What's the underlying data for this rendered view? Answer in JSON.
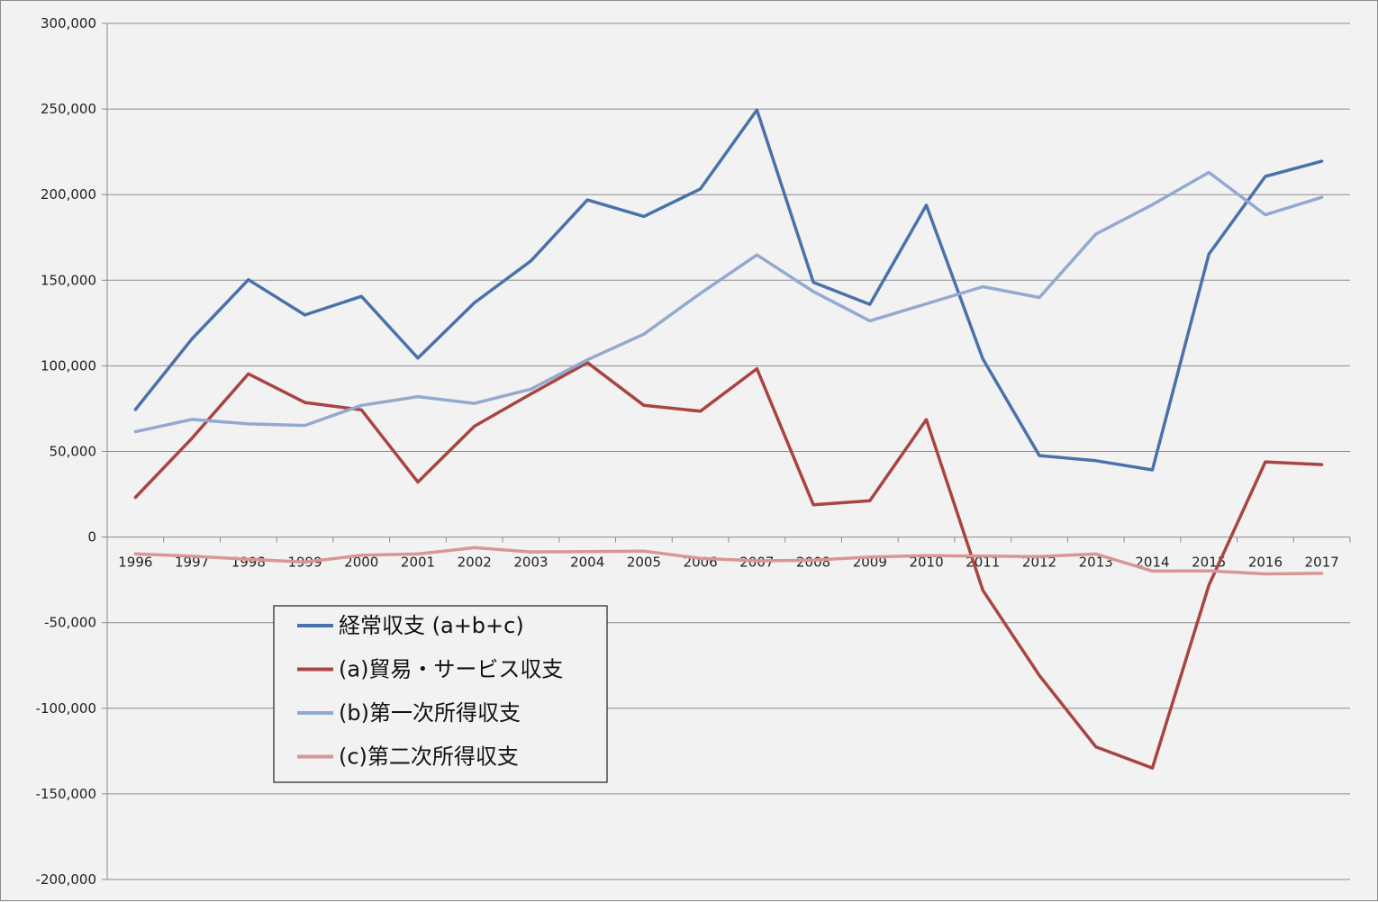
{
  "chart_data": {
    "type": "line",
    "title": "",
    "xlabel": "",
    "ylabel": "",
    "categories": [
      "1996",
      "1997",
      "1998",
      "1999",
      "2000",
      "2001",
      "2002",
      "2003",
      "2004",
      "2005",
      "2006",
      "2007",
      "2008",
      "2009",
      "2010",
      "2011",
      "2012",
      "2013",
      "2014",
      "2015",
      "2016",
      "2017"
    ],
    "ylim": [
      -200000,
      300000
    ],
    "y_ticks": [
      300000,
      250000,
      200000,
      150000,
      100000,
      50000,
      0,
      -50000,
      -100000,
      -150000,
      -200000
    ],
    "y_tick_labels": [
      "300,000",
      "250,000",
      "200,000",
      "150,000",
      "100,000",
      "50,000",
      "0",
      "-50,000",
      "-100,000",
      "-150,000",
      "-200,000"
    ],
    "grid": true,
    "legend_position": "lower-left",
    "series": [
      {
        "name": "経常収支 (a+b+c)",
        "color": "#4a72aa",
        "values": [
          74500,
          115700,
          150300,
          129700,
          140600,
          104500,
          136800,
          161300,
          196900,
          187300,
          203300,
          249500,
          148800,
          135900,
          193800,
          104000,
          47600,
          44600,
          39200,
          165200,
          210600,
          219500
        ]
      },
      {
        "name": "(a)貿易・サービス収支",
        "color": "#a84442",
        "values": [
          23200,
          57700,
          95300,
          78600,
          74300,
          32100,
          64700,
          83600,
          101900,
          76900,
          73500,
          98300,
          18900,
          21200,
          68600,
          -31100,
          -80800,
          -122500,
          -134900,
          -28200,
          43900,
          42300
        ]
      },
      {
        "name": "(b)第一次所得収支",
        "color": "#93a9d1",
        "values": [
          61500,
          68700,
          66100,
          65200,
          76900,
          82000,
          78100,
          86400,
          103500,
          118500,
          142300,
          164800,
          143400,
          126300,
          136200,
          146200,
          139900,
          176900,
          194100,
          213000,
          188200,
          198400
        ]
      },
      {
        "name": "(c)第二次所得収支",
        "color": "#d99694",
        "values": [
          -9800,
          -11200,
          -13000,
          -14600,
          -10600,
          -9900,
          -6200,
          -8700,
          -8500,
          -8200,
          -12400,
          -13900,
          -13500,
          -11600,
          -10900,
          -11100,
          -11400,
          -9900,
          -19900,
          -19700,
          -21500,
          -21200
        ]
      }
    ]
  }
}
